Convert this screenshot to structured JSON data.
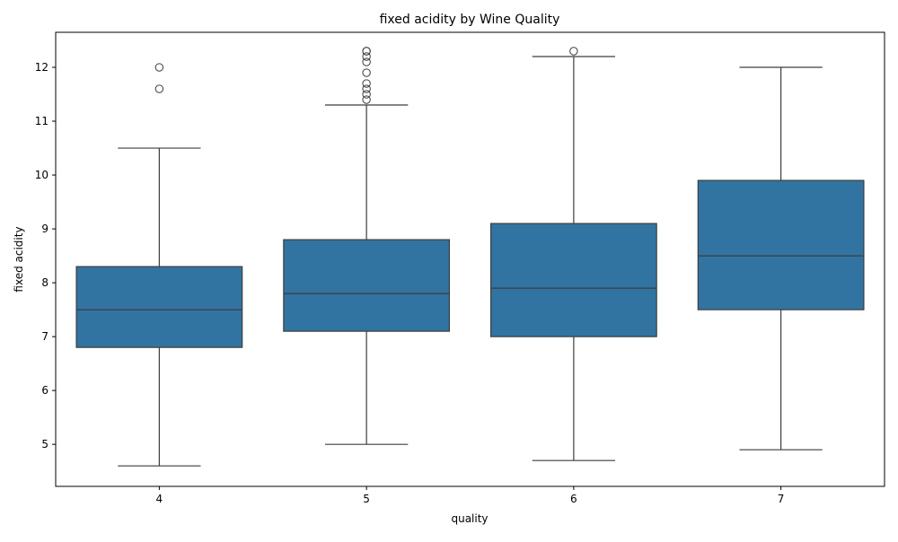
{
  "chart_data": {
    "type": "box",
    "title": "fixed acidity by Wine Quality",
    "xlabel": "quality",
    "ylabel": "fixed acidity",
    "ylim": [
      4.22,
      12.65
    ],
    "yticks": [
      5,
      6,
      7,
      8,
      9,
      10,
      11,
      12
    ],
    "grid": false,
    "legend": "none",
    "box_color": "#3274a1",
    "line_color": "#3d3d3d",
    "categories": [
      "4",
      "5",
      "6",
      "7"
    ],
    "boxes": [
      {
        "category": "4",
        "whisker_low": 4.6,
        "q1": 6.8,
        "median": 7.5,
        "q3": 8.3,
        "whisker_high": 10.5,
        "outliers": [
          11.6,
          12.0
        ]
      },
      {
        "category": "5",
        "whisker_low": 5.0,
        "q1": 7.1,
        "median": 7.8,
        "q3": 8.8,
        "whisker_high": 11.3,
        "outliers": [
          11.4,
          11.5,
          11.6,
          11.7,
          11.9,
          12.1,
          12.2,
          12.3,
          12.3
        ]
      },
      {
        "category": "6",
        "whisker_low": 4.7,
        "q1": 7.0,
        "median": 7.9,
        "q3": 9.1,
        "whisker_high": 12.2,
        "outliers": [
          12.3
        ]
      },
      {
        "category": "7",
        "whisker_low": 4.9,
        "q1": 7.5,
        "median": 8.5,
        "q3": 9.9,
        "whisker_high": 12.0,
        "outliers": []
      }
    ]
  }
}
